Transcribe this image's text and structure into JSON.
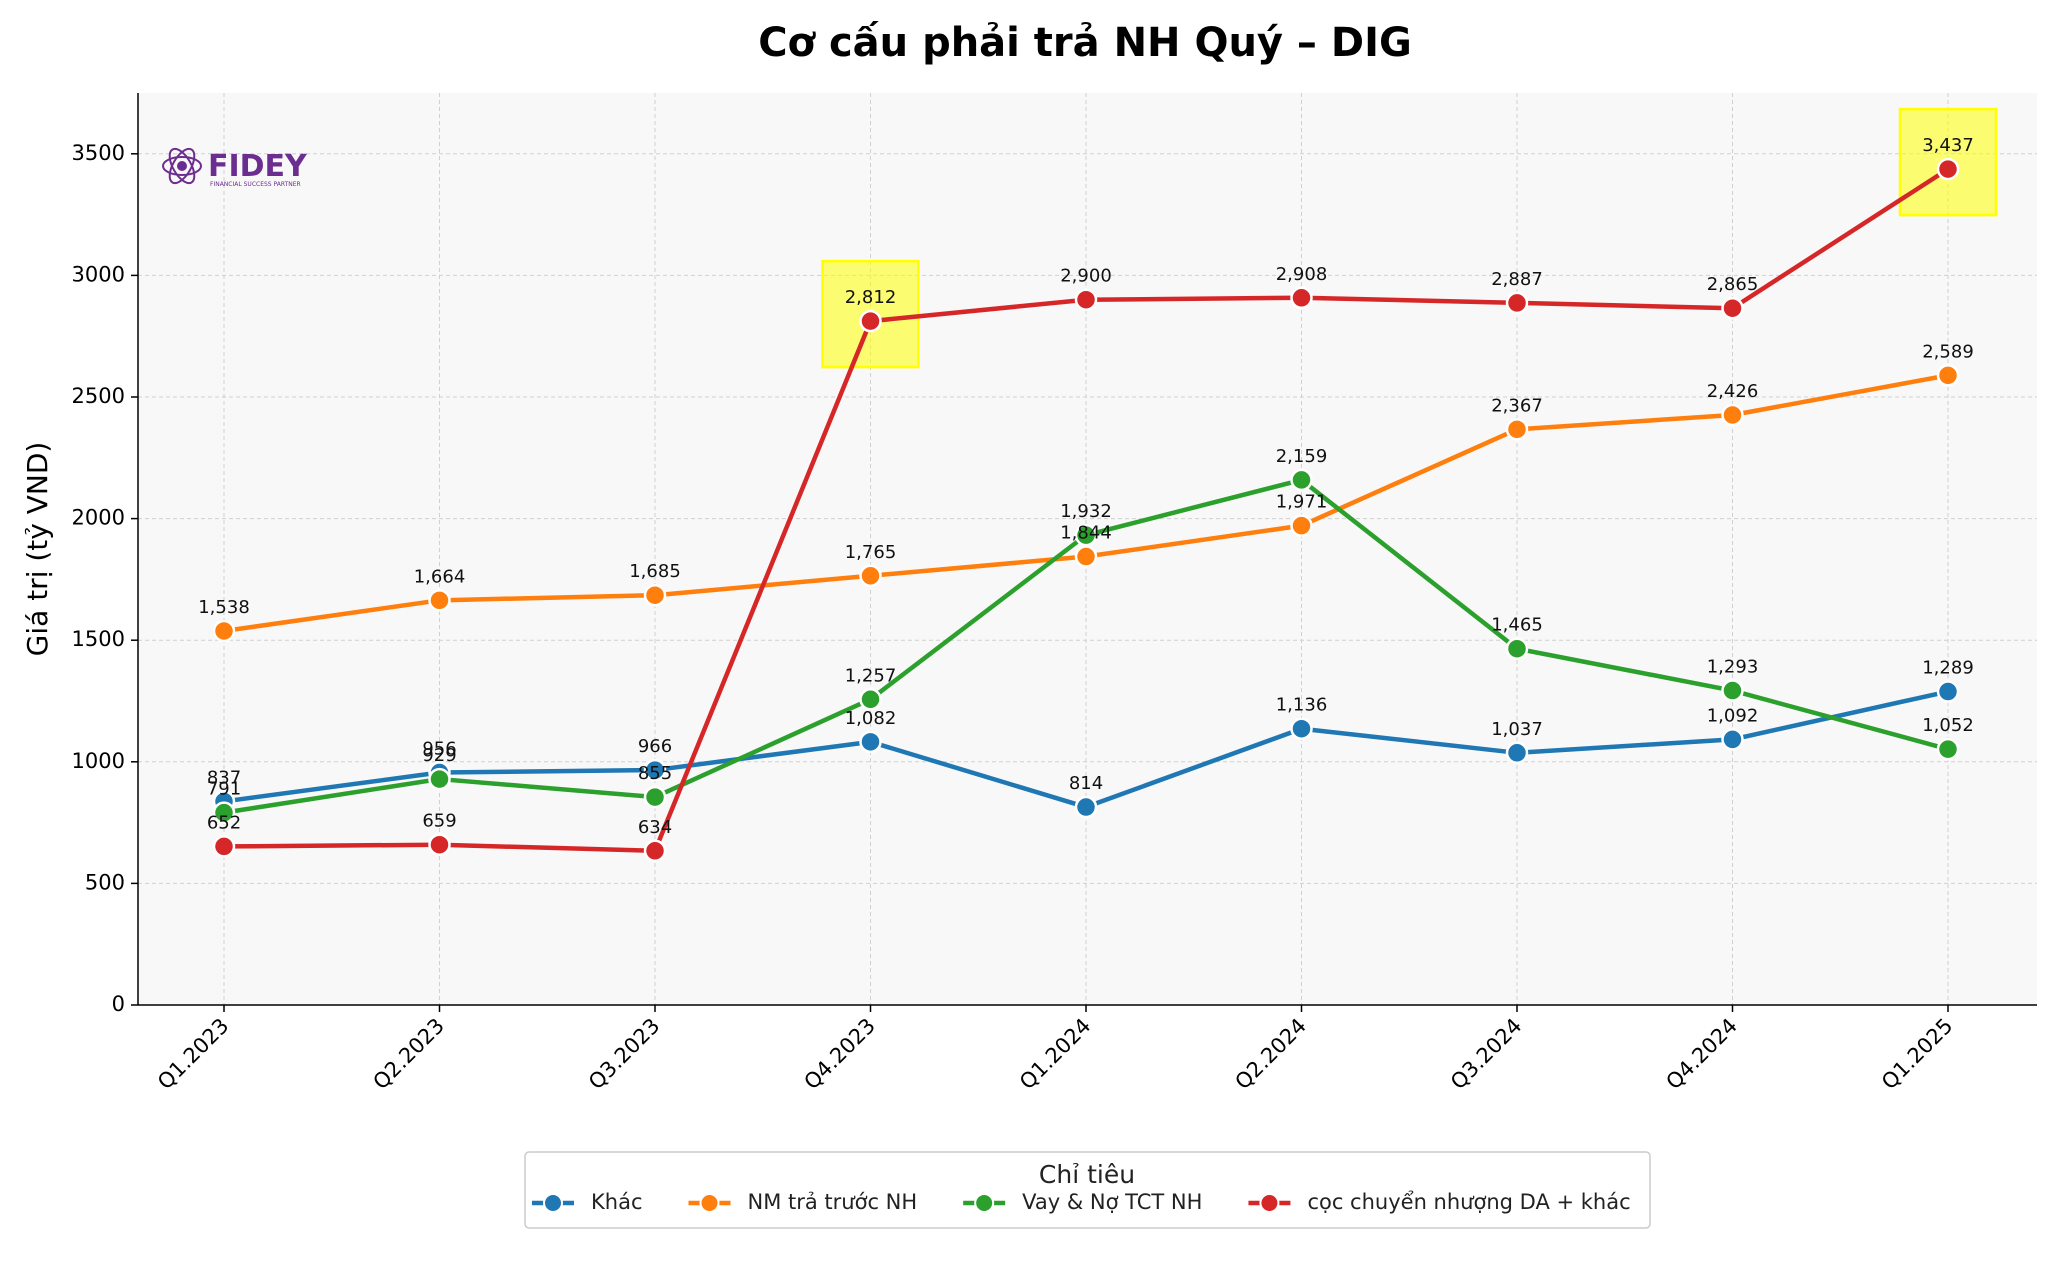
{
  "chart_data": {
    "type": "line",
    "title": "Cơ cấu phải trả NH Quý – DIG",
    "xlabel": "",
    "ylabel": "Giá trị (tỷ VND)",
    "ylim": [
      0,
      3750
    ],
    "yticks": [
      0,
      500,
      1000,
      1500,
      2000,
      2500,
      3000,
      3500
    ],
    "grid": true,
    "categories": [
      "Q1.2023",
      "Q2.2023",
      "Q3.2023",
      "Q4.2023",
      "Q1.2024",
      "Q2.2024",
      "Q3.2024",
      "Q4.2024",
      "Q1.2025"
    ],
    "series": [
      {
        "name": "Khác",
        "color": "#1f77b4",
        "values": [
          837,
          956,
          966,
          1082,
          814,
          1136,
          1037,
          1092,
          1289
        ]
      },
      {
        "name": "NM trả trước NH",
        "color": "#ff7f0e",
        "values": [
          1538,
          1664,
          1685,
          1765,
          1844,
          1971,
          2367,
          2426,
          2589
        ]
      },
      {
        "name": "Vay & Nợ TCT NH",
        "color": "#2ca02c",
        "values": [
          791,
          929,
          855,
          1257,
          1932,
          2159,
          1465,
          1293,
          1052
        ]
      },
      {
        "name": "cọc chuyển nhượng DA + khác",
        "color": "#d62728",
        "values": [
          652,
          659,
          634,
          2812,
          2900,
          2908,
          2887,
          2865,
          3437
        ]
      }
    ],
    "highlights": [
      {
        "series": "cọc chuyển nhượng DA + khác",
        "category": "Q4.2023",
        "color": "#ffff00"
      },
      {
        "series": "cọc chuyển nhượng DA + khác",
        "category": "Q1.2025",
        "color": "#ffff00"
      }
    ],
    "legend": {
      "title": "Chỉ tiêu",
      "placement": "bottom-center"
    }
  },
  "logo": {
    "text": "FIDEY",
    "tagline": "FINANCIAL SUCCESS PARTNER"
  }
}
